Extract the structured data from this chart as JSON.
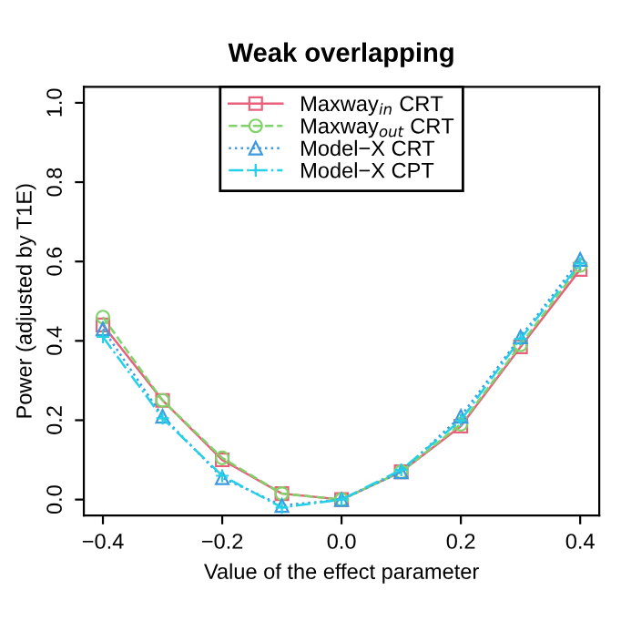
{
  "chart_data": {
    "type": "line",
    "title": "Weak overlapping",
    "xlabel": "Value of the effect parameter",
    "ylabel": "Power (adjusted by T1E)",
    "x": [
      -0.4,
      -0.3,
      -0.2,
      -0.1,
      0.0,
      0.1,
      0.2,
      0.3,
      0.4
    ],
    "series": [
      {
        "name": "Maxway$_{in}$ CRT",
        "color": "#e8607a",
        "marker": "square",
        "line_style": "solid",
        "values": [
          0.44,
          0.25,
          0.1,
          0.015,
          0.0,
          0.07,
          0.185,
          0.385,
          0.58
        ]
      },
      {
        "name": "Maxway$_{out}$ CRT",
        "color": "#7fd36a",
        "marker": "circle",
        "line_style": "dashed",
        "values": [
          0.46,
          0.25,
          0.105,
          0.015,
          0.0,
          0.07,
          0.19,
          0.39,
          0.59
        ]
      },
      {
        "name": "Model−X CRT",
        "color": "#3c9ae0",
        "marker": "triangle",
        "line_style": "dotted",
        "values": [
          0.43,
          0.21,
          0.055,
          -0.015,
          0.0,
          0.07,
          0.21,
          0.41,
          0.605
        ]
      },
      {
        "name": "Model−X CPT",
        "color": "#22d0e8",
        "marker": "cross",
        "line_style": "dashdot",
        "values": [
          0.41,
          0.205,
          0.06,
          -0.02,
          0.0,
          0.075,
          0.2,
          0.405,
          0.595
        ]
      }
    ],
    "xlim": [
      -0.432,
      0.432
    ],
    "ylim": [
      -0.04,
      1.04
    ],
    "xticks": [
      {
        "value": -0.4,
        "label": "−0.4"
      },
      {
        "value": -0.2,
        "label": "−0.2"
      },
      {
        "value": 0.0,
        "label": "0.0"
      },
      {
        "value": 0.2,
        "label": "0.2"
      },
      {
        "value": 0.4,
        "label": "0.4"
      }
    ],
    "yticks": [
      {
        "value": 0.0,
        "label": "0.0"
      },
      {
        "value": 0.2,
        "label": "0.2"
      },
      {
        "value": 0.4,
        "label": "0.4"
      },
      {
        "value": 0.6,
        "label": "0.6"
      },
      {
        "value": 0.8,
        "label": "0.8"
      },
      {
        "value": 1.0,
        "label": "1.0"
      }
    ],
    "grid": false,
    "legend": "top"
  }
}
